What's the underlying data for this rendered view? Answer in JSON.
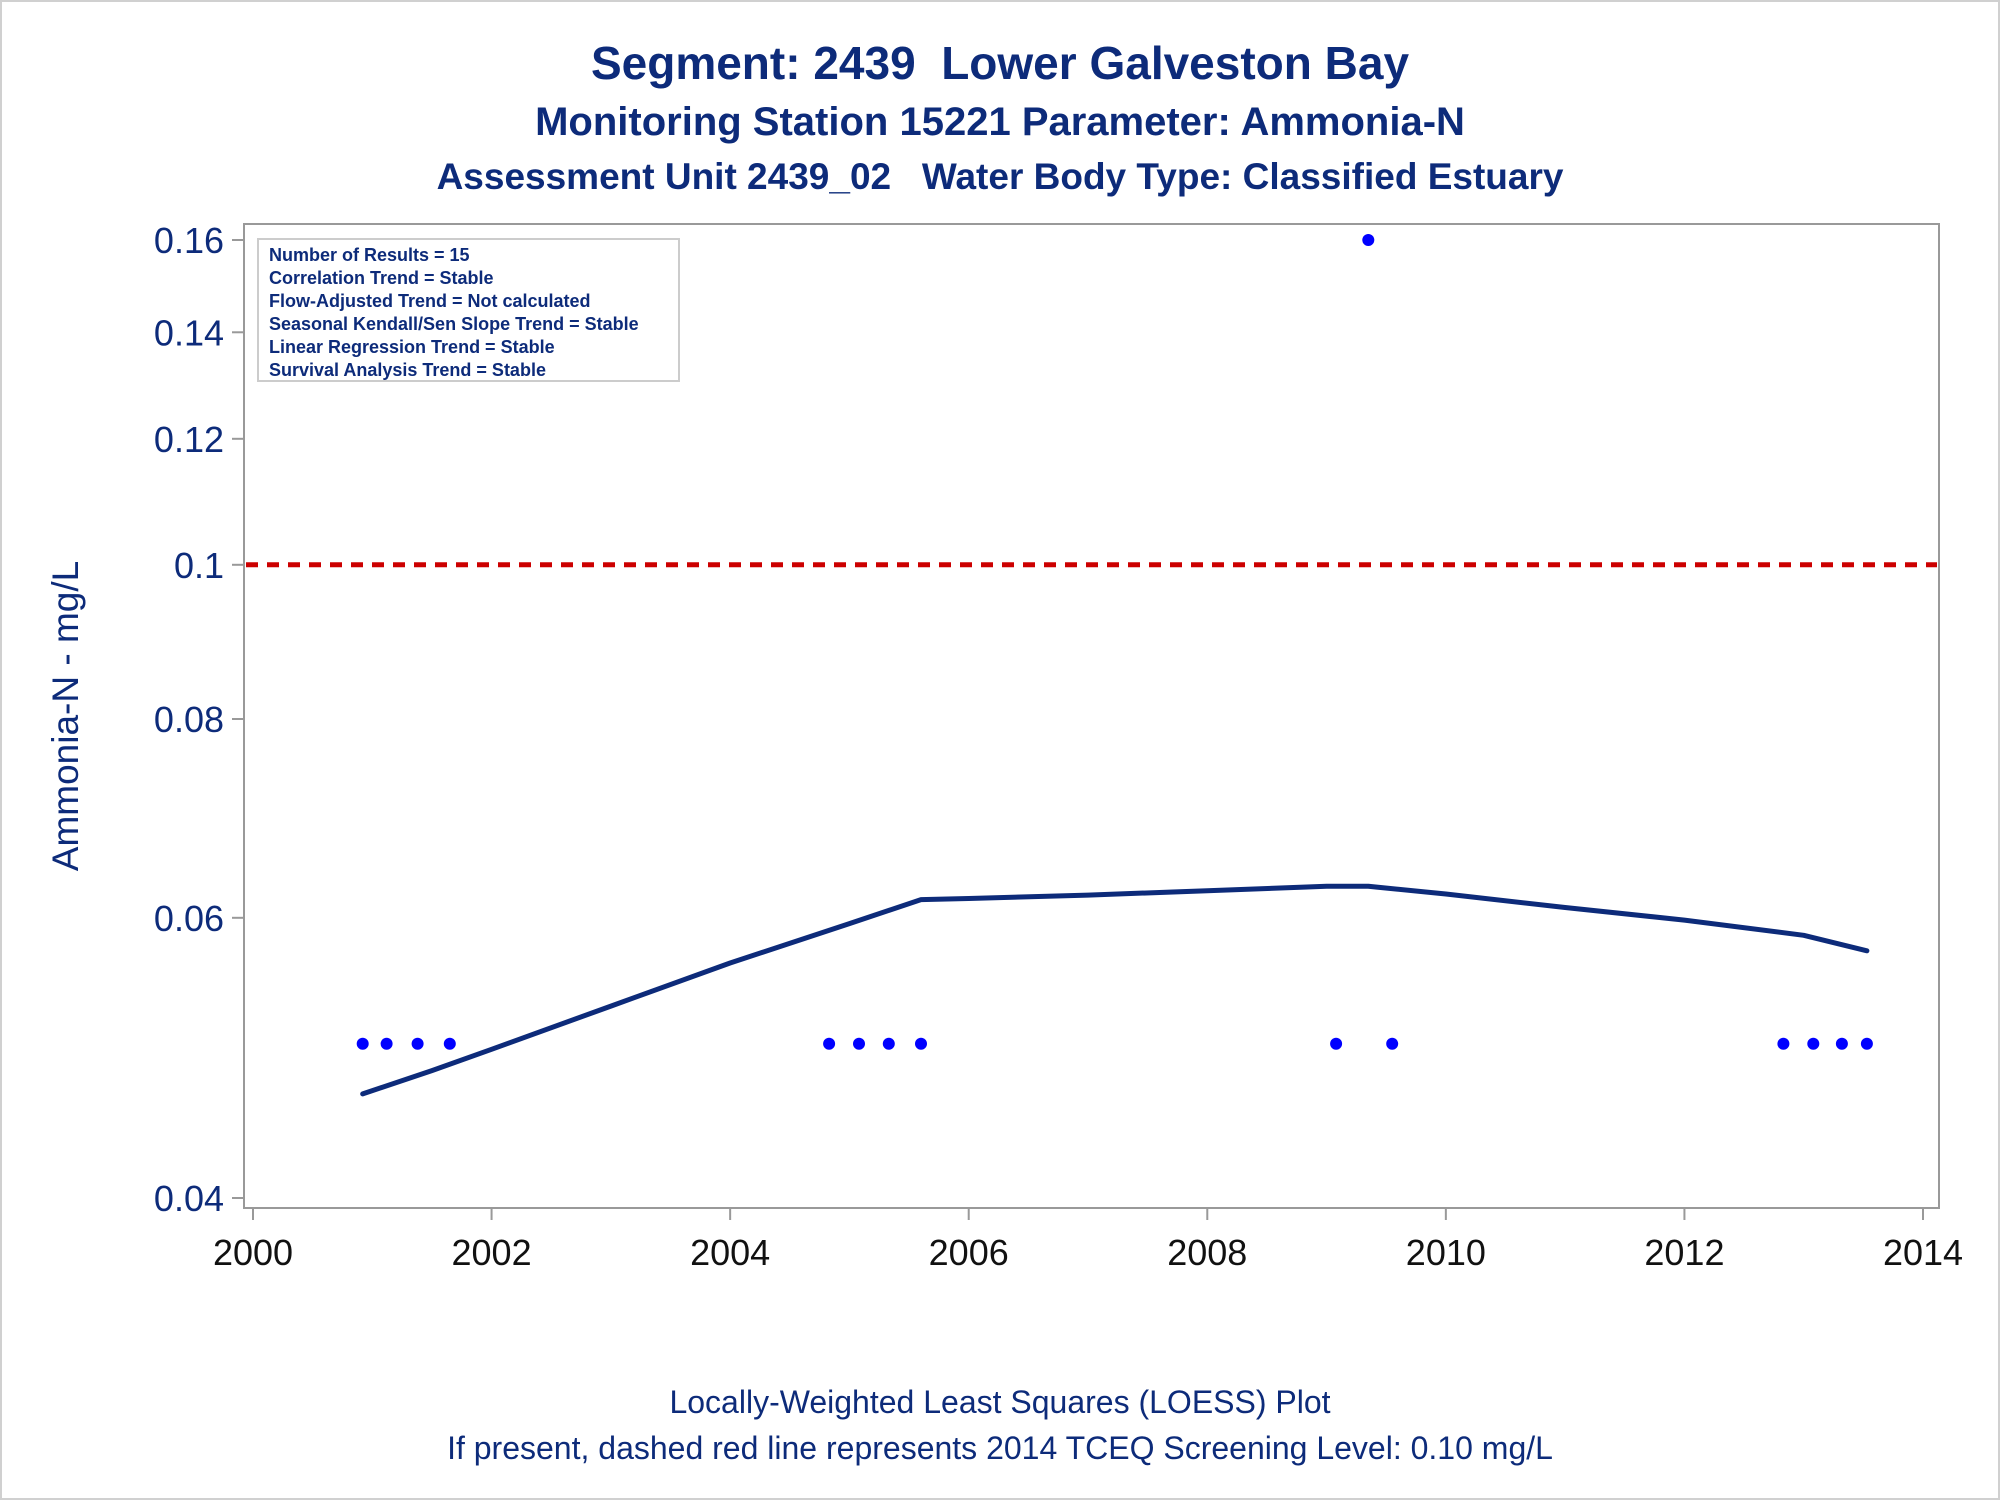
{
  "header": {
    "title": "Segment: 2439  Lower Galveston Bay",
    "subtitle1": "Monitoring Station 15221 Parameter: Ammonia-N",
    "subtitle2": "Assessment Unit 2439_02   Water Body Type: Classified Estuary"
  },
  "footer": {
    "line1": "Locally-Weighted Least Squares (LOESS) Plot",
    "line2": "If present, dashed red line represents 2014 TCEQ Screening Level: 0.10 mg/L"
  },
  "chart_data": {
    "type": "scatter",
    "ylabel": "Ammonia-N - mg/L",
    "xlabel": "",
    "y_scale": "log",
    "xlim": [
      2000,
      2014
    ],
    "ylim": [
      0.04,
      0.16
    ],
    "x_ticks": [
      "2000",
      "2002",
      "2004",
      "2006",
      "2008",
      "2010",
      "2012",
      "2014"
    ],
    "y_ticks": [
      "0.04",
      "0.06",
      "0.08",
      "0.1",
      "0.12",
      "0.14",
      "0.16"
    ],
    "grid": false,
    "legend_placement": "top-left",
    "info_box": [
      "Number of Results = 15",
      "Correlation Trend = Stable",
      "Flow-Adjusted Trend = Not calculated",
      "Seasonal Kendall/Sen Slope Trend = Stable",
      "Linear Regression Trend = Stable",
      "Survival Analysis Trend = Stable"
    ],
    "screening_level": {
      "value": 0.1,
      "style": "dashed",
      "color": "#cc0000"
    },
    "series": [
      {
        "type": "scatter",
        "color": "#0000ff",
        "x": [
          2000.92,
          2001.12,
          2001.38,
          2001.65,
          2004.83,
          2005.08,
          2005.33,
          2005.6,
          2009.08,
          2009.35,
          2009.55,
          2012.83,
          2013.08,
          2013.32,
          2013.53
        ],
        "y": [
          0.05,
          0.05,
          0.05,
          0.05,
          0.05,
          0.05,
          0.05,
          0.05,
          0.05,
          0.16,
          0.05,
          0.05,
          0.05,
          0.05,
          0.05
        ]
      },
      {
        "type": "line",
        "color": "#0d2b7a",
        "x": [
          2000.92,
          2001.5,
          2002.0,
          2003.0,
          2004.0,
          2005.0,
          2005.6,
          2006.0,
          2007.0,
          2008.0,
          2009.0,
          2009.35,
          2010.0,
          2011.0,
          2012.0,
          2013.0,
          2013.53
        ],
        "y": [
          0.0465,
          0.0481,
          0.0496,
          0.0528,
          0.0562,
          0.0595,
          0.0616,
          0.0617,
          0.062,
          0.0624,
          0.0628,
          0.0628,
          0.0621,
          0.0609,
          0.0598,
          0.0585,
          0.0572
        ]
      }
    ]
  }
}
